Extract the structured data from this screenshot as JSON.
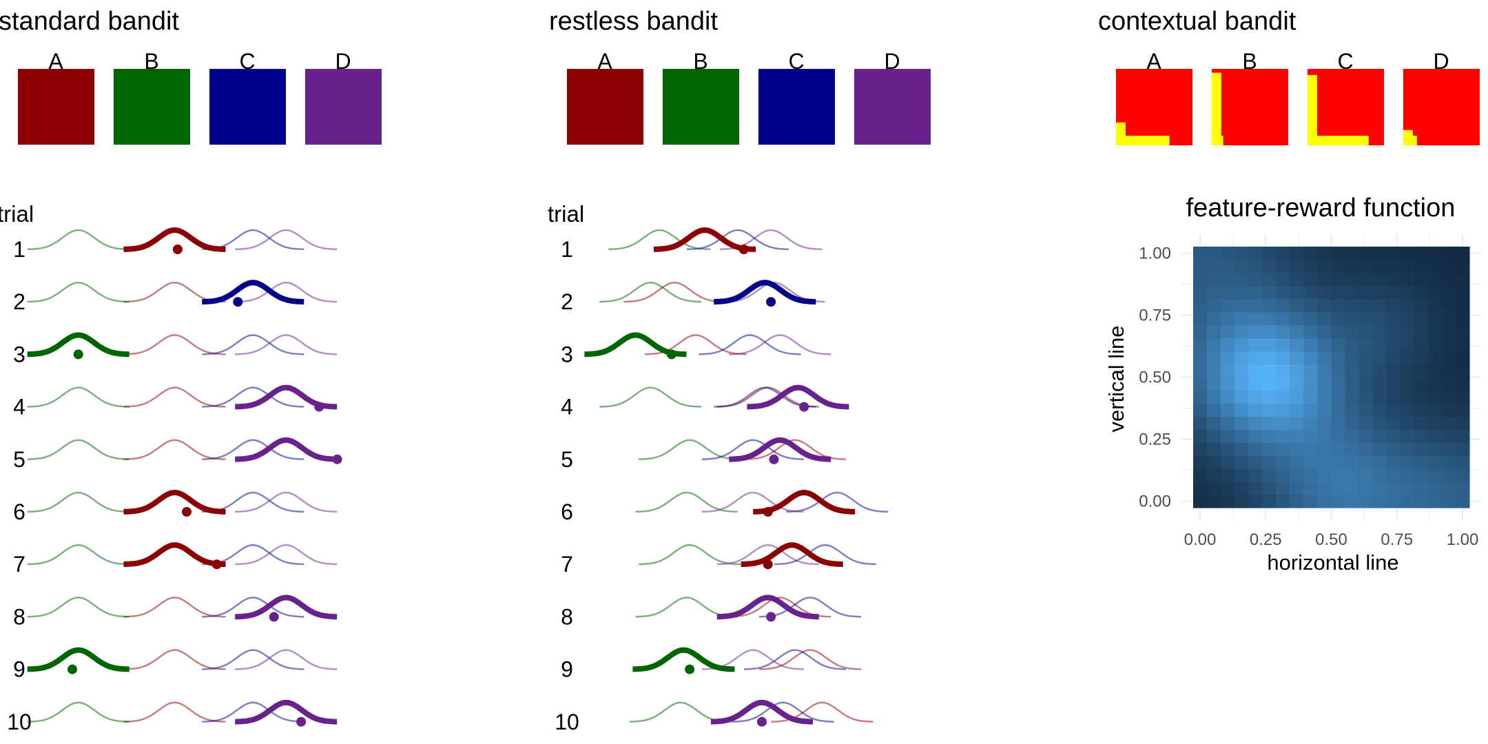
{
  "arms": [
    "A",
    "B",
    "C",
    "D"
  ],
  "colors": {
    "A": "#8b0000",
    "B": "#006400",
    "C": "#00008b",
    "D": "#68228b",
    "context_bg": "#ff0000",
    "context_feature": "#ffff00",
    "heat_low": "#132b43",
    "heat_high": "#56b1f7"
  },
  "trial_label": "trial",
  "trials": [
    1,
    2,
    3,
    4,
    5,
    6,
    7,
    8,
    9,
    10
  ],
  "standard": {
    "title": "standard bandit",
    "means": {
      "A": 0.42,
      "B": 0.1,
      "C": 0.68,
      "D": 0.79
    },
    "choices": [
      "A",
      "C",
      "B",
      "D",
      "D",
      "A",
      "A",
      "D",
      "B",
      "D"
    ],
    "outcomes": [
      0.43,
      0.63,
      0.1,
      0.9,
      0.96,
      0.46,
      0.56,
      0.75,
      0.08,
      0.84
    ]
  },
  "restless": {
    "title": "restless bandit",
    "means": {
      "A": [
        0.35,
        0.25,
        0.32,
        0.56,
        0.65,
        0.68,
        0.64,
        0.6,
        0.7,
        0.74
      ],
      "B": [
        0.2,
        0.17,
        0.12,
        0.17,
        0.3,
        0.29,
        0.3,
        0.29,
        0.28,
        0.27
      ],
      "C": [
        0.46,
        0.55,
        0.5,
        0.55,
        0.51,
        0.79,
        0.75,
        0.7,
        0.65,
        0.61
      ],
      "D": [
        0.57,
        0.58,
        0.6,
        0.66,
        0.6,
        0.51,
        0.56,
        0.56,
        0.51,
        0.54
      ]
    },
    "choices": [
      "A",
      "C",
      "B",
      "D",
      "D",
      "A",
      "A",
      "D",
      "B",
      "D"
    ],
    "outcomes": [
      0.48,
      0.57,
      0.24,
      0.68,
      0.58,
      0.56,
      0.56,
      0.57,
      0.3,
      0.54
    ]
  },
  "contextual": {
    "title": "contextual bandit",
    "features": {
      "A": {
        "horizontal": 0.7,
        "vertical": 0.3
      },
      "B": {
        "horizontal": 0.15,
        "vertical": 0.95
      },
      "C": {
        "horizontal": 0.8,
        "vertical": 0.92
      },
      "D": {
        "horizontal": 0.18,
        "vertical": 0.2
      }
    }
  },
  "feature_reward": {
    "title": "feature-reward function",
    "xlabel": "horizontal line",
    "ylabel": "vertical line",
    "ticks": [
      "0.00",
      "0.25",
      "0.50",
      "0.75",
      "1.00"
    ],
    "xlim": [
      0,
      1
    ],
    "ylim": [
      0,
      1
    ],
    "grid_size": 20,
    "peak": {
      "horizontal": 0.25,
      "vertical": 0.5
    }
  }
}
